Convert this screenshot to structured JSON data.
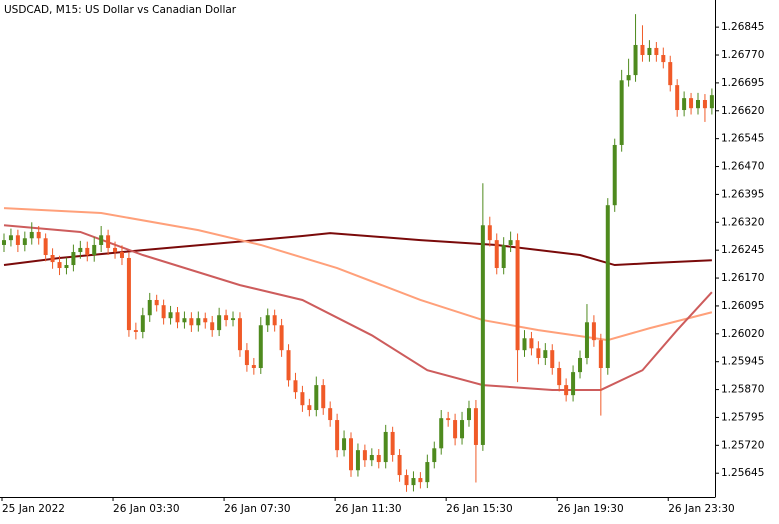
{
  "chart_data": {
    "type": "candlestick",
    "title": "USDCAD, M15:  US Dollar vs Canadian Dollar",
    "categories": [
      "25 Jan 2022",
      null,
      null,
      null,
      null,
      null,
      null,
      null,
      null,
      null,
      null,
      null,
      null,
      null,
      null,
      null,
      "26 Jan 03:30",
      null,
      null,
      null,
      null,
      null,
      null,
      null,
      null,
      null,
      null,
      null,
      null,
      null,
      null,
      null,
      "26 Jan 07:30",
      null,
      null,
      null,
      null,
      null,
      null,
      null,
      null,
      null,
      null,
      null,
      null,
      null,
      null,
      null,
      "26 Jan 11:30",
      null,
      null,
      null,
      null,
      null,
      null,
      null,
      null,
      null,
      null,
      null,
      null,
      null,
      null,
      null,
      "26 Jan 15:30",
      null,
      null,
      null,
      null,
      null,
      null,
      null,
      null,
      null,
      null,
      null,
      null,
      null,
      null,
      null,
      "26 Jan 19:30",
      null,
      null,
      null,
      null,
      null,
      null,
      null,
      null,
      null,
      null,
      null,
      null,
      null,
      null,
      null,
      "26 Jan 23:30",
      null,
      null,
      null,
      null,
      null,
      null
    ],
    "open": [
      1.26259,
      1.26272,
      1.26285,
      1.26259,
      1.26277,
      1.26294,
      1.26277,
      1.26232,
      1.26213,
      1.26197,
      1.26205,
      1.2624,
      1.26251,
      1.26232,
      1.26259,
      1.26285,
      1.26251,
      1.2624,
      1.26224,
      1.2603,
      1.26025,
      1.2607,
      1.26111,
      1.26097,
      1.26062,
      1.26078,
      1.26051,
      1.26062,
      1.26043,
      1.26062,
      1.26051,
      1.2603,
      1.2607,
      1.26057,
      1.26062,
      1.25976,
      1.25936,
      1.25928,
      1.26043,
      1.2607,
      1.26043,
      1.25976,
      1.25895,
      1.25863,
      1.25828,
      1.25815,
      1.25882,
      1.2582,
      1.25788,
      1.25707,
      1.25739,
      1.25653,
      1.25707,
      1.2568,
      1.25694,
      1.25675,
      1.25756,
      1.25694,
      1.2564,
      1.25613,
      1.25632,
      1.25621,
      1.25675,
      1.25712,
      1.25793,
      1.25788,
      1.25739,
      1.25788,
      1.2582,
      1.25721,
      1.26312,
      1.26272,
      1.26197,
      1.26259,
      1.26272,
      1.25976,
      1.26008,
      1.25981,
      1.25955,
      1.25976,
      1.25928,
      1.25882,
      1.25855,
      1.25917,
      1.25955,
      1.26051,
      1.26003,
      1.25928,
      1.26366,
      1.26528,
      1.26702,
      1.26716,
      1.26797,
      1.2677,
      1.26789,
      1.2677,
      1.26751,
      1.26689,
      1.26622,
      1.26654,
      1.26627,
      1.26649,
      1.26627
    ],
    "high": [
      1.2629,
      1.26303,
      1.263,
      1.26295,
      1.2632,
      1.2631,
      1.2629,
      1.2625,
      1.2623,
      1.26225,
      1.2626,
      1.2627,
      1.26268,
      1.2628,
      1.2631,
      1.263,
      1.26268,
      1.26258,
      1.2624,
      1.2605,
      1.2609,
      1.2613,
      1.26125,
      1.26112,
      1.26095,
      1.26092,
      1.2608,
      1.26078,
      1.2608,
      1.26077,
      1.26068,
      1.2609,
      1.26085,
      1.2608,
      1.26078,
      1.25995,
      1.25955,
      1.26065,
      1.26088,
      1.26085,
      1.2606,
      1.25992,
      1.25915,
      1.2588,
      1.25845,
      1.25905,
      1.25898,
      1.25838,
      1.25805,
      1.2576,
      1.25755,
      1.25725,
      1.25722,
      1.25712,
      1.2571,
      1.25775,
      1.2577,
      1.2571,
      1.25655,
      1.2565,
      1.25648,
      1.25695,
      1.2573,
      1.25815,
      1.2581,
      1.25805,
      1.2581,
      1.2584,
      1.25842,
      1.26425,
      1.26335,
      1.2629,
      1.2628,
      1.26295,
      1.2629,
      1.2603,
      1.26025,
      1.26,
      1.25995,
      1.25992,
      1.25945,
      1.259,
      1.25935,
      1.25975,
      1.261,
      1.2607,
      1.2602,
      1.26385,
      1.26545,
      1.2673,
      1.2676,
      1.2688,
      1.2685,
      1.2681,
      1.26805,
      1.2679,
      1.26768,
      1.26705,
      1.26672,
      1.26668,
      1.26668,
      1.26665,
      1.2668
    ],
    "low": [
      1.2624,
      1.26255,
      1.2624,
      1.26242,
      1.2626,
      1.2626,
      1.26215,
      1.26195,
      1.26178,
      1.2618,
      1.26188,
      1.26222,
      1.26215,
      1.26214,
      1.2624,
      1.26232,
      1.26222,
      1.26205,
      1.26012,
      1.26005,
      1.26008,
      1.26052,
      1.2608,
      1.26045,
      1.26045,
      1.26035,
      1.26034,
      1.26025,
      1.26026,
      1.26034,
      1.26012,
      1.26014,
      1.2604,
      1.2604,
      1.25958,
      1.25918,
      1.2591,
      1.25912,
      1.26025,
      1.26026,
      1.25958,
      1.25878,
      1.25845,
      1.2581,
      1.25798,
      1.25798,
      1.25802,
      1.2577,
      1.25688,
      1.2569,
      1.25635,
      1.25636,
      1.25662,
      1.25664,
      1.25658,
      1.25658,
      1.25676,
      1.25622,
      1.25595,
      1.25596,
      1.25604,
      1.25605,
      1.25658,
      1.25695,
      1.2577,
      1.2572,
      1.25722,
      1.2577,
      1.2562,
      1.25705,
      1.26255,
      1.2618,
      1.2618,
      1.2624,
      1.2589,
      1.25958,
      1.25962,
      1.25938,
      1.25936,
      1.2591,
      1.25865,
      1.25838,
      1.25838,
      1.259,
      1.25938,
      1.25985,
      1.258,
      1.2591,
      1.26348,
      1.2651,
      1.26685,
      1.26698,
      1.26752,
      1.26752,
      1.26752,
      1.26734,
      1.26672,
      1.26604,
      1.26605,
      1.2661,
      1.2661,
      1.2659,
      1.2661
    ],
    "close": [
      1.26272,
      1.26285,
      1.26259,
      1.26277,
      1.26294,
      1.26277,
      1.26232,
      1.26213,
      1.26197,
      1.26205,
      1.2624,
      1.26251,
      1.26232,
      1.26259,
      1.26285,
      1.26251,
      1.2624,
      1.26224,
      1.2603,
      1.26025,
      1.2607,
      1.26111,
      1.26097,
      1.26062,
      1.26078,
      1.26051,
      1.26062,
      1.26043,
      1.26062,
      1.26051,
      1.2603,
      1.2607,
      1.26057,
      1.26062,
      1.25976,
      1.25936,
      1.25928,
      1.26043,
      1.2607,
      1.26043,
      1.25976,
      1.25895,
      1.25863,
      1.25828,
      1.25815,
      1.25882,
      1.2582,
      1.25788,
      1.25707,
      1.25739,
      1.25653,
      1.25707,
      1.2568,
      1.25694,
      1.25675,
      1.25756,
      1.25694,
      1.2564,
      1.25613,
      1.25632,
      1.25621,
      1.25675,
      1.25712,
      1.25793,
      1.25788,
      1.25739,
      1.25788,
      1.2582,
      1.25721,
      1.26312,
      1.26272,
      1.26197,
      1.26259,
      1.26272,
      1.25976,
      1.26008,
      1.25981,
      1.25955,
      1.25976,
      1.25928,
      1.25882,
      1.25855,
      1.25917,
      1.25955,
      1.26051,
      1.26003,
      1.25928,
      1.26366,
      1.26528,
      1.26702,
      1.26716,
      1.26797,
      1.2677,
      1.26789,
      1.2677,
      1.26751,
      1.26689,
      1.26622,
      1.26654,
      1.26627,
      1.26649,
      1.26627,
      1.26662
    ],
    "up_color": "#4e8a1e",
    "down_color": "#f05a28",
    "overlays": [
      {
        "color": "#7a0a0a",
        "x": [
          0,
          8,
          20,
          43,
          47,
          60,
          71,
          83,
          88,
          93,
          102
        ],
        "values": [
          1.26205,
          1.26224,
          1.26245,
          1.26283,
          1.26291,
          1.26272,
          1.26259,
          1.26232,
          1.26205,
          1.2621,
          1.26218
        ]
      },
      {
        "color": "#ffa07a",
        "x": [
          0,
          14,
          28,
          37,
          48,
          60,
          69,
          77,
          87,
          93,
          102
        ],
        "values": [
          1.26358,
          1.26345,
          1.26299,
          1.26259,
          1.26197,
          1.26111,
          1.26057,
          1.2603,
          1.26003,
          1.26035,
          1.26078
        ]
      },
      {
        "color": "#cd5c5c",
        "x": [
          0,
          11,
          20,
          34,
          43,
          53,
          61,
          69,
          79,
          86,
          92,
          97,
          102
        ],
        "values": [
          1.26312,
          1.26294,
          1.26232,
          1.26151,
          1.26111,
          1.26016,
          1.25922,
          1.25882,
          1.25869,
          1.25869,
          1.25922,
          1.2603,
          1.26132
        ]
      }
    ],
    "ylim": [
      1.25581,
      1.26918
    ],
    "yticks": [
      1.25645,
      {
        "value": 1.2572,
        "label": "1.25720"
      },
      1.25795,
      {
        "value": 1.2587,
        "label": "1.25870"
      },
      1.25945,
      {
        "value": 1.2602,
        "label": "1.26020"
      },
      1.26095,
      {
        "value": 1.2617,
        "label": "1.26170"
      },
      1.26245,
      {
        "value": 1.2632,
        "label": "1.26320"
      },
      1.26395,
      {
        "value": 1.2647,
        "label": "1.26470"
      },
      1.26545,
      {
        "value": 1.2662,
        "label": "1.26620"
      },
      1.26695,
      {
        "value": 1.2677,
        "label": "1.26770"
      },
      1.26845
    ]
  }
}
